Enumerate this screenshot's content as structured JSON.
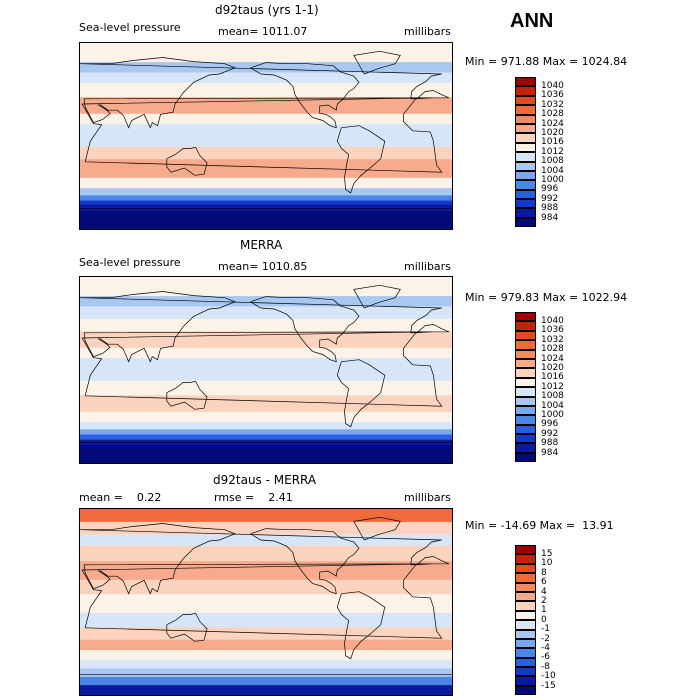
{
  "header": {
    "season": "ANN"
  },
  "panels": [
    {
      "id": "model",
      "title": "d92taus (yrs 1-1)",
      "left_label": "Sea-level pressure",
      "center_label": "mean= 1011.07",
      "right_label": "millibars",
      "minmax": "Min = 971.88 Max = 1024.84",
      "levels": [
        "1040",
        "1036",
        "1032",
        "1028",
        "1024",
        "1020",
        "1016",
        "1012",
        "1008",
        "1004",
        "1000",
        "996",
        "992",
        "988",
        "984"
      ],
      "colors": [
        "#9e0000",
        "#c42200",
        "#e34a1e",
        "#f06a3c",
        "#f48a62",
        "#f7ab8c",
        "#fcd3be",
        "#fbf2e8",
        "#d6e6f8",
        "#a8c8f2",
        "#7aa8ec",
        "#4a86e6",
        "#2a60e0",
        "#1438c8",
        "#0a1aa0",
        "#020a78"
      ],
      "bands": [
        {
          "lat": -90,
          "color": "#020a78"
        },
        {
          "lat": -72,
          "color": "#0a1aa0"
        },
        {
          "lat": -66,
          "color": "#1438c8"
        },
        {
          "lat": -62,
          "color": "#4a86e6"
        },
        {
          "lat": -57,
          "color": "#a8c8f2"
        },
        {
          "lat": -50,
          "color": "#fbf2e8"
        },
        {
          "lat": -40,
          "color": "#f7ab8c"
        },
        {
          "lat": -22,
          "color": "#fcd3be"
        },
        {
          "lat": -10,
          "color": "#d6e6f8"
        },
        {
          "lat": 12,
          "color": "#fbf2e8"
        },
        {
          "lat": 22,
          "color": "#f7ab8c"
        },
        {
          "lat": 38,
          "color": "#fbf2e8"
        },
        {
          "lat": 52,
          "color": "#d6e6f8"
        },
        {
          "lat": 62,
          "color": "#a8c8f2"
        },
        {
          "lat": 72,
          "color": "#fbf2e8"
        }
      ]
    },
    {
      "id": "obs",
      "title": "MERRA",
      "left_label": "Sea-level pressure",
      "center_label": "mean= 1010.85",
      "right_label": "millibars",
      "minmax": "Min = 979.83 Max = 1022.94",
      "levels": [
        "1040",
        "1036",
        "1032",
        "1028",
        "1024",
        "1020",
        "1016",
        "1012",
        "1008",
        "1004",
        "1000",
        "996",
        "992",
        "988",
        "984"
      ],
      "colors": [
        "#9e0000",
        "#c42200",
        "#e34a1e",
        "#f06a3c",
        "#f48a62",
        "#f7ab8c",
        "#fcd3be",
        "#fbf2e8",
        "#d6e6f8",
        "#a8c8f2",
        "#7aa8ec",
        "#4a86e6",
        "#2a60e0",
        "#1438c8",
        "#0a1aa0",
        "#020a78"
      ],
      "bands": [
        {
          "lat": -90,
          "color": "#020a78"
        },
        {
          "lat": -72,
          "color": "#0a1aa0"
        },
        {
          "lat": -67,
          "color": "#2a60e0"
        },
        {
          "lat": -62,
          "color": "#7aa8ec"
        },
        {
          "lat": -57,
          "color": "#d6e6f8"
        },
        {
          "lat": -50,
          "color": "#fbf2e8"
        },
        {
          "lat": -40,
          "color": "#fcd3be"
        },
        {
          "lat": -24,
          "color": "#fbf2e8"
        },
        {
          "lat": -10,
          "color": "#d6e6f8"
        },
        {
          "lat": 12,
          "color": "#fbf2e8"
        },
        {
          "lat": 22,
          "color": "#fcd3be"
        },
        {
          "lat": 38,
          "color": "#fbf2e8"
        },
        {
          "lat": 50,
          "color": "#d6e6f8"
        },
        {
          "lat": 62,
          "color": "#a8c8f2"
        },
        {
          "lat": 72,
          "color": "#fbf2e8"
        }
      ]
    },
    {
      "id": "diff",
      "title": "d92taus - MERRA",
      "left_label": "mean =    0.22",
      "center_label": "rmse =    2.41",
      "right_label": "millibars",
      "minmax": "Min = -14.69 Max =  13.91",
      "levels": [
        "15",
        "10",
        "8",
        "6",
        "4",
        "2",
        "1",
        "0",
        "-1",
        "-2",
        "-4",
        "-6",
        "-8",
        "-10",
        "-15"
      ],
      "colors": [
        "#9e0000",
        "#c42200",
        "#e34a1e",
        "#f06a3c",
        "#f48a62",
        "#f7ab8c",
        "#fcd3be",
        "#fbf2e8",
        "#d6e6f8",
        "#a8c8f2",
        "#7aa8ec",
        "#4a86e6",
        "#2a60e0",
        "#1438c8",
        "#0a1aa0",
        "#020a78"
      ],
      "bands": [
        {
          "lat": -90,
          "color": "#0a1aa0"
        },
        {
          "lat": -80,
          "color": "#4a86e6"
        },
        {
          "lat": -72,
          "color": "#a8c8f2"
        },
        {
          "lat": -64,
          "color": "#d6e6f8"
        },
        {
          "lat": -56,
          "color": "#fbf2e8"
        },
        {
          "lat": -46,
          "color": "#f7ab8c"
        },
        {
          "lat": -36,
          "color": "#fcd3be"
        },
        {
          "lat": -24,
          "color": "#d6e6f8"
        },
        {
          "lat": -10,
          "color": "#fbf2e8"
        },
        {
          "lat": 8,
          "color": "#fcd3be"
        },
        {
          "lat": 22,
          "color": "#f7ab8c"
        },
        {
          "lat": 40,
          "color": "#fcd3be"
        },
        {
          "lat": 55,
          "color": "#d6e6f8"
        },
        {
          "lat": 66,
          "color": "#fcd3be"
        },
        {
          "lat": 78,
          "color": "#f06a3c"
        }
      ]
    }
  ]
}
